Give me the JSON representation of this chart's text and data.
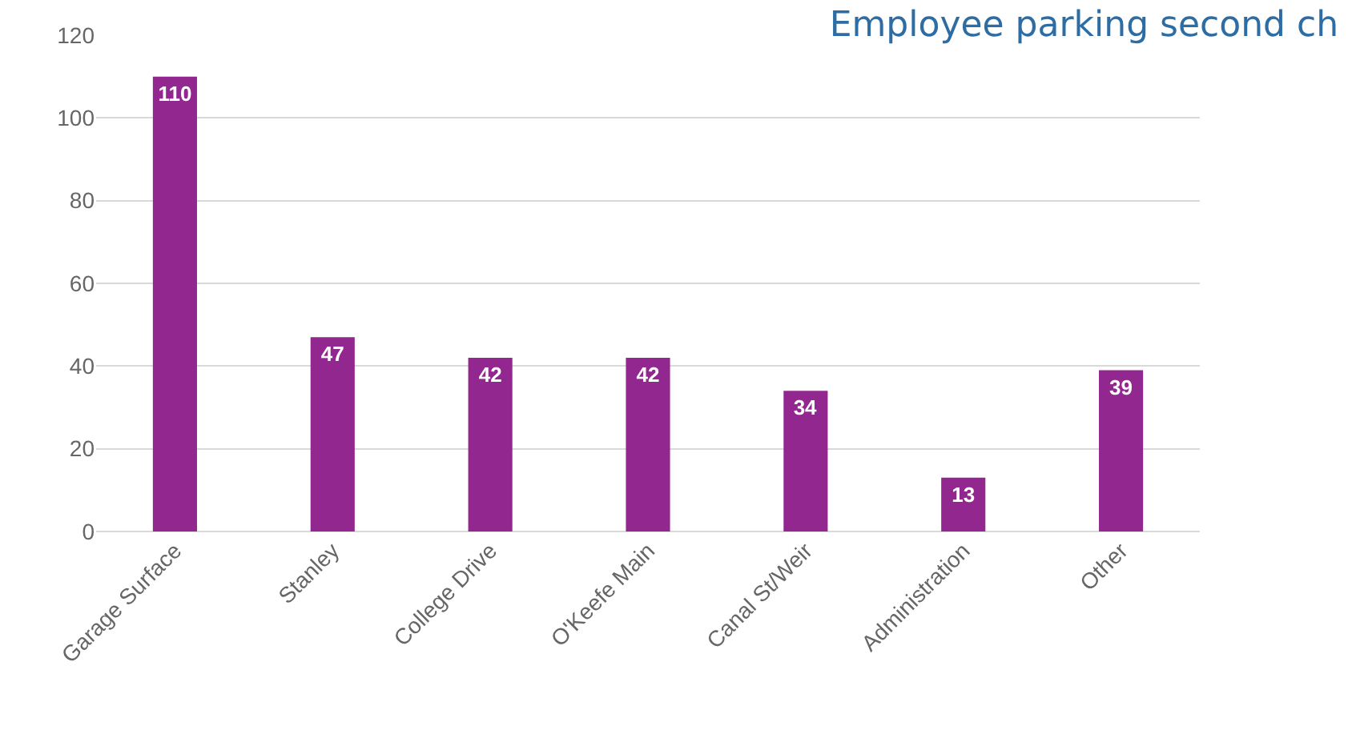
{
  "chart_data": {
    "type": "bar",
    "title": "Employee parking second ch",
    "categories": [
      "Garage Surface",
      "Stanley",
      "College Drive",
      "O'Keefe Main",
      "Canal St/Weir",
      "Administration",
      "Other"
    ],
    "values": [
      110,
      47,
      42,
      42,
      34,
      13,
      39
    ],
    "color": "#92278f",
    "ylim": [
      0,
      120
    ],
    "yticks": [
      0,
      20,
      40,
      60,
      80,
      100,
      120
    ],
    "grid": "y",
    "data_labels": true
  }
}
